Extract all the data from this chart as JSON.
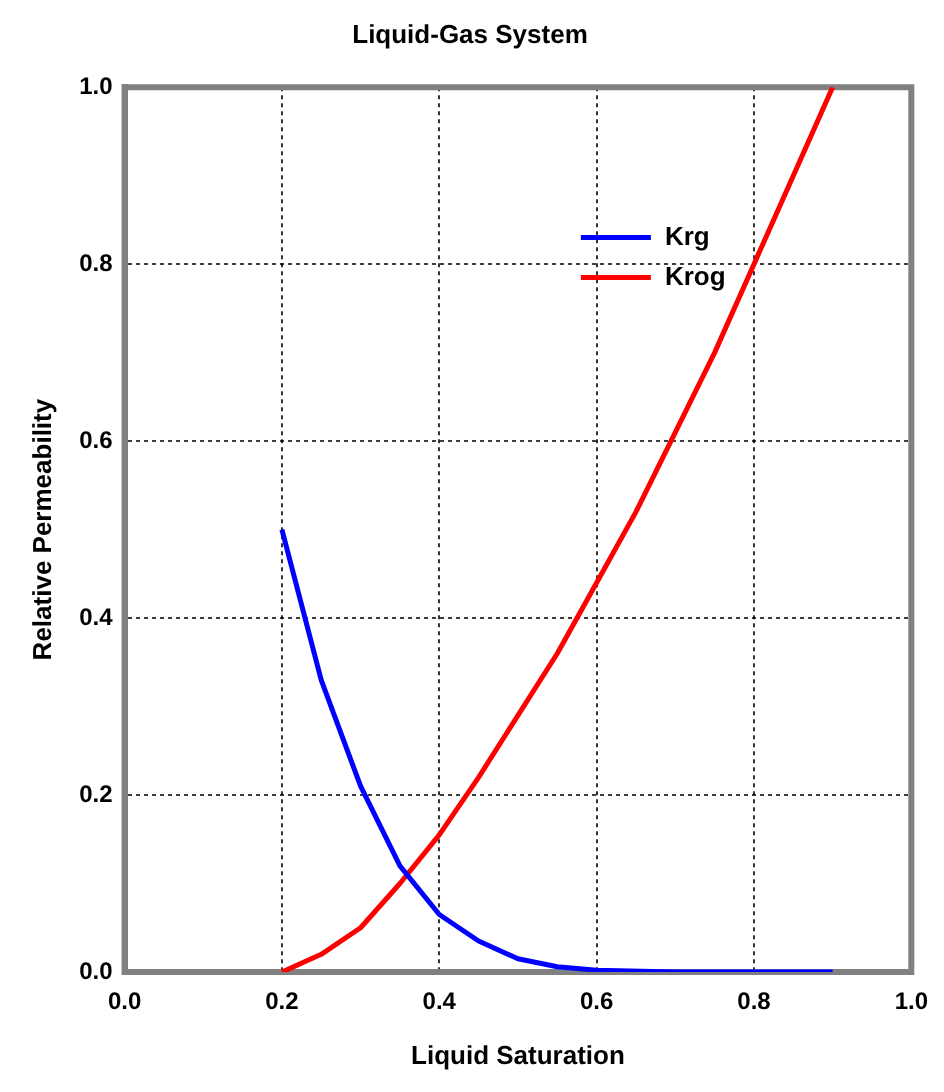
{
  "chart_data": {
    "type": "line",
    "title": "Liquid-Gas System",
    "xlabel": "Liquid Saturation",
    "ylabel": "Relative Permeability",
    "xlim": [
      0,
      1
    ],
    "xticks": [
      {
        "value": 0,
        "label": "0.0"
      },
      0.2,
      0.4,
      0.6,
      0.8,
      {
        "value": 1,
        "label": "1.0"
      }
    ],
    "ylim": [
      0,
      1
    ],
    "yticks": [
      {
        "value": 0,
        "label": "0.0"
      },
      0.2,
      0.4,
      0.6,
      0.8,
      {
        "value": 1,
        "label": "1.0"
      }
    ],
    "grid": true,
    "legend": "top right",
    "marker": "none",
    "line_style": "solid",
    "series": [
      {
        "name": "Krg",
        "color": "#0000ff",
        "x": [
          0.2,
          0.25,
          0.3,
          0.35,
          0.4,
          0.45,
          0.5,
          0.55,
          0.6,
          0.7,
          0.8,
          0.9
        ],
        "values": [
          0.5,
          0.33,
          0.21,
          0.12,
          0.065,
          0.035,
          0.015,
          0.006,
          0.002,
          0,
          0,
          0
        ]
      },
      {
        "name": "Krog",
        "color": "#ff0000",
        "x": [
          0.2,
          0.25,
          0.3,
          0.35,
          0.4,
          0.45,
          0.5,
          0.55,
          0.6,
          0.65,
          0.7,
          0.75,
          0.8,
          0.85,
          0.9
        ],
        "values": [
          0,
          0.02,
          0.05,
          0.1,
          0.155,
          0.22,
          0.29,
          0.36,
          0.44,
          0.52,
          0.61,
          0.7,
          0.8,
          0.9,
          1
        ]
      }
    ]
  }
}
